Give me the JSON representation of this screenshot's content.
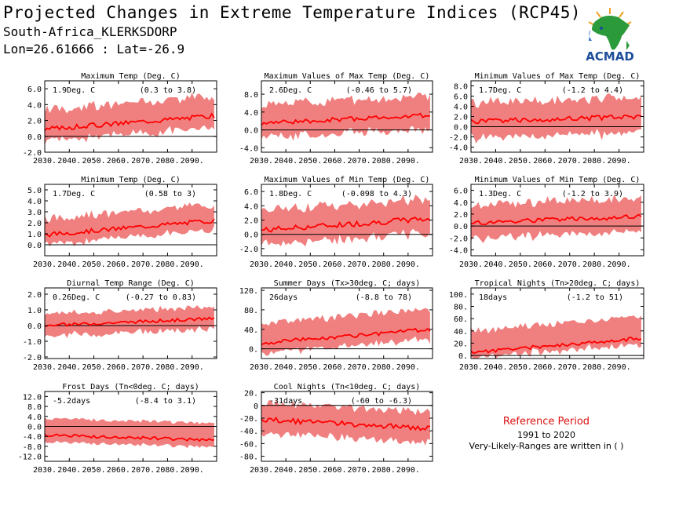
{
  "header": {
    "title": "Projected Changes in Extreme Temperature Indices (RCP45)",
    "location": "South-Africa_KLERKSDORP",
    "coords": "Lon=26.61666 : Lat=-26.9"
  },
  "logo": {
    "text": "ACMAD",
    "icon": "africa-map-logo-icon"
  },
  "reference": {
    "title": "Reference Period",
    "years": "1991 to 2020",
    "note": "Very-Likely-Ranges are written in ( )"
  },
  "colors": {
    "band": "#f08080",
    "line": "#ff0000",
    "zero": "#000000"
  },
  "chart_data": [
    {
      "type": "area",
      "title": "Maximum Temp (Deg. C)",
      "stat": "1.9Deg. C",
      "range": "(0.3 to 3.8)",
      "x": [
        2030,
        2099
      ],
      "xticks": [
        "2030.",
        "2040.",
        "2050.",
        "2060.",
        "2070.",
        "2080.",
        "2090."
      ],
      "ylim": [
        -2,
        7
      ],
      "yticks": [
        "-2.0",
        "0.0",
        "2.0",
        "4.0",
        "6.0"
      ],
      "ytick_values": [
        -2,
        0,
        2,
        4,
        6
      ],
      "median": {
        "start": 0.9,
        "end": 2.6,
        "noise": 0.3
      },
      "band": {
        "low": 1.0,
        "high": 2.0,
        "noise": 0.9
      }
    },
    {
      "type": "area",
      "title": "Maximum Values of Max Temp (Deg. C)",
      "stat": "2.6Deg. C",
      "range": "(-0.46 to 5.7)",
      "x": [
        2030,
        2099
      ],
      "xticks": [
        "2030.",
        "2040.",
        "2050.",
        "2060.",
        "2070.",
        "2080.",
        "2090."
      ],
      "ylim": [
        -5,
        11
      ],
      "yticks": [
        "-4.0",
        "0.0",
        "4.0",
        "8.0"
      ],
      "ytick_values": [
        -4,
        0,
        4,
        8
      ],
      "median": {
        "start": 1.5,
        "end": 3.3,
        "noise": 0.5
      },
      "band": {
        "low": 2.3,
        "high": 3.5,
        "noise": 1.6
      }
    },
    {
      "type": "area",
      "title": "Minimum Values of Max Temp (Deg. C)",
      "stat": "1.7Deg. C",
      "range": "(-1.2 to 4.4)",
      "x": [
        2030,
        2099
      ],
      "xticks": [
        "2030.",
        "2040.",
        "2050.",
        "2060.",
        "2070.",
        "2080.",
        "2090."
      ],
      "ylim": [
        -5,
        9
      ],
      "yticks": [
        "-4.0",
        "-2.0",
        "0.0",
        "2.0",
        "4.0",
        "6.0",
        "8.0"
      ],
      "ytick_values": [
        -4,
        -2,
        0,
        2,
        4,
        6,
        8
      ],
      "median": {
        "start": 1.0,
        "end": 2.0,
        "noise": 0.5
      },
      "band": {
        "low": 2.5,
        "high": 3.0,
        "noise": 1.5
      }
    },
    {
      "type": "area",
      "title": "Minimum Temp (Deg. C)",
      "stat": "1.7Deg. C",
      "range": "(0.58 to 3)",
      "x": [
        2030,
        2099
      ],
      "xticks": [
        "2030.",
        "2040.",
        "2050.",
        "2060.",
        "2070.",
        "2080.",
        "2090."
      ],
      "ylim": [
        -1,
        5.5
      ],
      "yticks": [
        "0.0",
        "1.0",
        "2.0",
        "3.0",
        "4.0",
        "5.0"
      ],
      "ytick_values": [
        0,
        1,
        2,
        3,
        4,
        5
      ],
      "median": {
        "start": 0.9,
        "end": 2.2,
        "noise": 0.2
      },
      "band": {
        "low": 0.6,
        "high": 1.2,
        "noise": 0.5
      }
    },
    {
      "type": "area",
      "title": "Maximum Values of Min Temp (Deg. C)",
      "stat": "1.8Deg. C",
      "range": "(-0.098 to 4.3)",
      "x": [
        2030,
        2099
      ],
      "xticks": [
        "2030.",
        "2040.",
        "2050.",
        "2060.",
        "2070.",
        "2080.",
        "2090."
      ],
      "ylim": [
        -3,
        7
      ],
      "yticks": [
        "-2.0",
        "0.0",
        "2.0",
        "4.0",
        "6.0"
      ],
      "ytick_values": [
        -2,
        0,
        2,
        4,
        6
      ],
      "median": {
        "start": 0.6,
        "end": 2.2,
        "noise": 0.4
      },
      "band": {
        "low": 1.5,
        "high": 2.3,
        "noise": 1.0
      }
    },
    {
      "type": "area",
      "title": "Minimum Values of Min Temp (Deg. C)",
      "stat": "1.3Deg. C",
      "range": "(-1.2 to 3.9)",
      "x": [
        2030,
        2099
      ],
      "xticks": [
        "2030.",
        "2040.",
        "2050.",
        "2060.",
        "2070.",
        "2080.",
        "2090."
      ],
      "ylim": [
        -5,
        7
      ],
      "yticks": [
        "-4.0",
        "-2.0",
        "0.0",
        "2.0",
        "4.0",
        "6.0"
      ],
      "ytick_values": [
        -4,
        -2,
        0,
        2,
        4,
        6
      ],
      "median": {
        "start": 0.5,
        "end": 1.6,
        "noise": 0.4
      },
      "band": {
        "low": 2.0,
        "high": 2.5,
        "noise": 1.2
      }
    },
    {
      "type": "area",
      "title": "Diurnal Temp Range (Deg. C)",
      "stat": "0.26Deg. C",
      "range": "(-0.27 to 0.83)",
      "x": [
        2030,
        2099
      ],
      "xticks": [
        "2030.",
        "2040.",
        "2050.",
        "2060.",
        "2070.",
        "2080.",
        "2090."
      ],
      "ylim": [
        -2.1,
        2.4
      ],
      "yticks": [
        "-2.0",
        "-1.0",
        "0.0",
        "1.0",
        "2.0"
      ],
      "ytick_values": [
        -2,
        -1,
        0,
        1,
        2
      ],
      "median": {
        "start": 0.0,
        "end": 0.45,
        "noise": 0.1
      },
      "band": {
        "low": 0.5,
        "high": 0.6,
        "noise": 0.3
      }
    },
    {
      "type": "area",
      "title": "Summer Days (Tx>30deg. C; days)",
      "stat": "26days",
      "range": "(-8.8 to 78)",
      "x": [
        2030,
        2099
      ],
      "xticks": [
        "2030.",
        "2040.",
        "2050.",
        "2060.",
        "2070.",
        "2080.",
        "2090."
      ],
      "ylim": [
        -20,
        125
      ],
      "yticks": [
        "0.",
        "40.",
        "80.",
        "120."
      ],
      "ytick_values": [
        0,
        40,
        80,
        120
      ],
      "median": {
        "start": 12,
        "end": 40,
        "noise": 4
      },
      "band": {
        "low": 15,
        "high": 35,
        "noise": 12
      }
    },
    {
      "type": "area",
      "title": "Tropical Nights (Tn>20deg. C; days)",
      "stat": "18days",
      "range": "(-1.2 to 51)",
      "x": [
        2030,
        2099
      ],
      "xticks": [
        "2030.",
        "2040.",
        "2050.",
        "2060.",
        "2070.",
        "2080.",
        "2090."
      ],
      "ylim": [
        -5,
        110
      ],
      "yticks": [
        "0.",
        "20.",
        "40.",
        "60.",
        "80.",
        "100."
      ],
      "ytick_values": [
        0,
        20,
        40,
        60,
        80,
        100
      ],
      "median": {
        "start": 5,
        "end": 28,
        "noise": 3
      },
      "band": {
        "low": 4,
        "high": 30,
        "noise": 10
      }
    },
    {
      "type": "area",
      "title": "Frost Days (Tn<0deg. C; days)",
      "stat": "-5.2days",
      "range": "(-8.4 to 3.1)",
      "x": [
        2030,
        2099
      ],
      "xticks": [
        "2030.",
        "2040.",
        "2050.",
        "2060.",
        "2070.",
        "2080.",
        "2090."
      ],
      "ylim": [
        -14,
        14
      ],
      "yticks": [
        "-12.0",
        "-8.0",
        "-4.0",
        "0.0",
        "4.0",
        "8.0",
        "12.0"
      ],
      "ytick_values": [
        -12,
        -8,
        -4,
        0,
        4,
        8,
        12
      ],
      "median": {
        "start": -3.5,
        "end": -5.5,
        "noise": 0.6
      },
      "band": {
        "low": 2.5,
        "high": 6.5,
        "noise": 0.5
      }
    },
    {
      "type": "area",
      "title": "Cool Nights (Tn<10deg. C; days)",
      "stat": "-31days",
      "range": "(-60 to -6.3)",
      "x": [
        2030,
        2099
      ],
      "xticks": [
        "2030.",
        "2040.",
        "2050.",
        "2060.",
        "2070.",
        "2080.",
        "2090."
      ],
      "ylim": [
        -88,
        22
      ],
      "yticks": [
        "-80.",
        "-60.",
        "-40.",
        "-20.",
        "0",
        "20."
      ],
      "ytick_values": [
        -80,
        -60,
        -40,
        -20,
        0,
        20
      ],
      "median": {
        "start": -22,
        "end": -36,
        "noise": 4
      },
      "band": {
        "low": 18,
        "high": 22,
        "noise": 8
      }
    }
  ]
}
